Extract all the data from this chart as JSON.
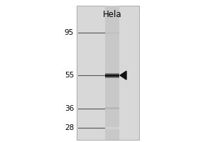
{
  "fig_bg": "#ffffff",
  "panel_bg": "#d8d8d8",
  "title_label": "Hela",
  "mw_markers": [
    {
      "label": "95",
      "log_val": 1.9777
    },
    {
      "label": "55",
      "log_val": 1.7404
    },
    {
      "label": "36",
      "log_val": 1.5563
    },
    {
      "label": "28",
      "log_val": 1.4472
    }
  ],
  "band_mw_log": 1.7404,
  "band_color": "#111111",
  "faint_bands": [
    {
      "log_val": 1.9777,
      "intensity": 0.35
    },
    {
      "log_val": 1.5563,
      "intensity": 0.4
    },
    {
      "log_val": 1.4472,
      "intensity": 0.25
    }
  ],
  "ylim_log_min": 1.38,
  "ylim_log_max": 2.05,
  "arrow_color": "#111111"
}
